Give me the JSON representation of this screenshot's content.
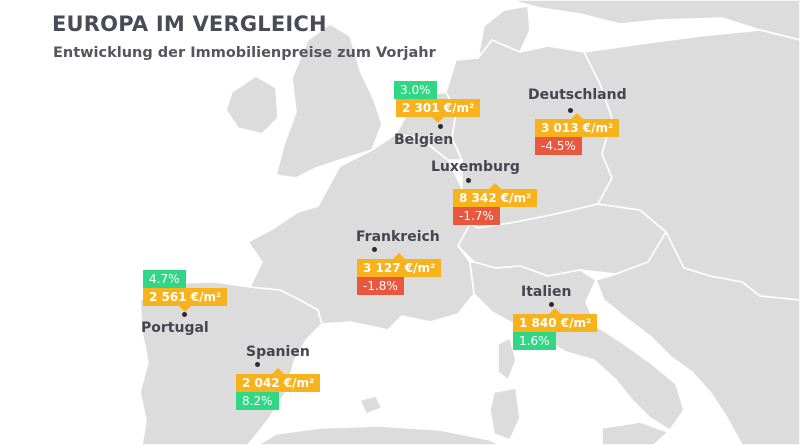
{
  "header": {
    "title": "EUROPA IM VERGLEICH",
    "subtitle": "Entwicklung der Immobilienpreise zum Vorjahr"
  },
  "colors": {
    "price": "#f7b21c",
    "increase": "#30d784",
    "decrease": "#e9573f",
    "land": "#dcdcdc",
    "sea": "#ffffff"
  },
  "countries": {
    "belgien": {
      "name": "Belgien",
      "price": "2 301 €/m²",
      "change": "3.0%",
      "trend": "up"
    },
    "deutschland": {
      "name": "Deutschland",
      "price": "3 013 €/m²",
      "change": "-4.5%",
      "trend": "down"
    },
    "luxemburg": {
      "name": "Luxemburg",
      "price": "8 342 €/m²",
      "change": "-1.7%",
      "trend": "down"
    },
    "frankreich": {
      "name": "Frankreich",
      "price": "3 127 €/m²",
      "change": "-1.8%",
      "trend": "down"
    },
    "portugal": {
      "name": "Portugal",
      "price": "2 561 €/m²",
      "change": "4.7%",
      "trend": "up"
    },
    "spanien": {
      "name": "Spanien",
      "price": "2 042 €/m²",
      "change": "8.2%",
      "trend": "up"
    },
    "italien": {
      "name": "Italien",
      "price": "1 840 €/m²",
      "change": "1.6%",
      "trend": "up"
    }
  }
}
